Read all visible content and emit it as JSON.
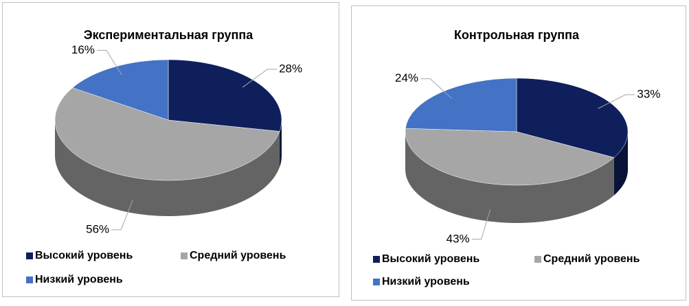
{
  "chart_data": [
    {
      "type": "pie",
      "title": "Экспериментальная группа",
      "categories": [
        "Высокий уровень",
        "Средний уровень",
        "Низкий уровень"
      ],
      "values": [
        28,
        56,
        16
      ],
      "value_labels": [
        "28%",
        "56%",
        "16%"
      ],
      "colors": [
        "#0f1f5c",
        "#a6a6a6",
        "#4472c4"
      ]
    },
    {
      "type": "pie",
      "title": "Контрольная группа",
      "categories": [
        "Высокий уровень",
        "Средний уровень",
        "Низкий уровень"
      ],
      "values": [
        33,
        43,
        24
      ],
      "value_labels": [
        "33%",
        "43%",
        "24%"
      ],
      "colors": [
        "#0f1f5c",
        "#a6a6a6",
        "#4472c4"
      ]
    }
  ]
}
